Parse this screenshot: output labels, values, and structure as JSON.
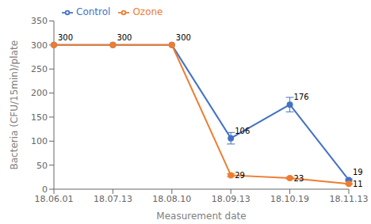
{
  "chart_data": {
    "type": "line",
    "categories": [
      "18.06.01",
      "18.07.13",
      "18.08.10",
      "18.09.13",
      "18.10.19",
      "18.11.13"
    ],
    "series": [
      {
        "name": "Control",
        "color": "#4472C4",
        "values": [
          300,
          300,
          300,
          106,
          176,
          19
        ],
        "errors": [
          0,
          0,
          0,
          12,
          15,
          2
        ]
      },
      {
        "name": "Ozone",
        "color": "#ED7D31",
        "values": [
          300,
          300,
          300,
          29,
          23,
          11
        ],
        "errors": [
          0,
          0,
          0,
          3,
          2,
          1
        ]
      }
    ],
    "xlabel": "Measurement date",
    "ylabel": "Bacteria (CFU/15min)/plate",
    "ylim": [
      0,
      350
    ],
    "yticks": [
      0,
      50,
      100,
      150,
      200,
      250,
      300,
      350
    ],
    "annotations": [
      {
        "series": "Control",
        "x": "18.06.01",
        "y": 300,
        "text": "300"
      },
      {
        "series": "Control",
        "x": "18.07.13",
        "y": 300,
        "text": "300"
      },
      {
        "series": "Control",
        "x": "18.08.10",
        "y": 300,
        "text": "300"
      },
      {
        "series": "Control",
        "x": "18.09.13",
        "y": 106,
        "text": "106"
      },
      {
        "series": "Control",
        "x": "18.10.19",
        "y": 176,
        "text": "176"
      },
      {
        "series": "Control",
        "x": "18.11.13",
        "y": 19,
        "text": "19"
      },
      {
        "series": "Ozone",
        "x": "18.09.13",
        "y": 29,
        "text": "29"
      },
      {
        "series": "Ozone",
        "x": "18.10.19",
        "y": 23,
        "text": "23"
      },
      {
        "series": "Ozone",
        "x": "18.11.13",
        "y": 11,
        "text": "11"
      }
    ],
    "marker": "circle",
    "legend": "upper left",
    "grid": false
  }
}
